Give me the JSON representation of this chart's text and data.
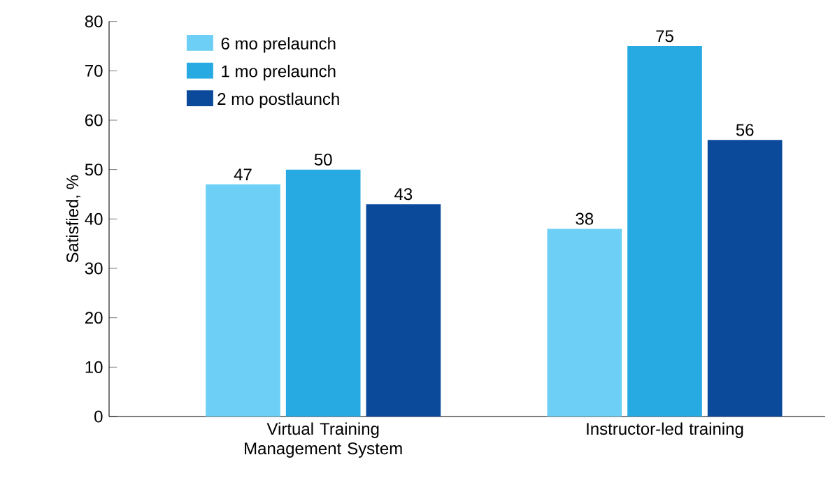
{
  "chart_data": {
    "type": "bar",
    "ylabel": "Satisfied, %",
    "categories": [
      "Virtual Training Management System",
      "Instructor-led training"
    ],
    "series": [
      {
        "name": "6 mo prelaunch",
        "color": "#6dcff6",
        "values": [
          47,
          38
        ]
      },
      {
        "name": "1 mo prelaunch",
        "color": "#27aae1",
        "values": [
          50,
          75
        ]
      },
      {
        "name": "2 mo postlaunch",
        "color": "#0b4a9b",
        "values": [
          43,
          56
        ]
      }
    ],
    "ylim": [
      0,
      80
    ],
    "yticks": [
      0,
      10,
      20,
      30,
      40,
      50,
      60,
      70,
      80
    ],
    "data_labels": true,
    "legend": "top left",
    "grid": false
  }
}
